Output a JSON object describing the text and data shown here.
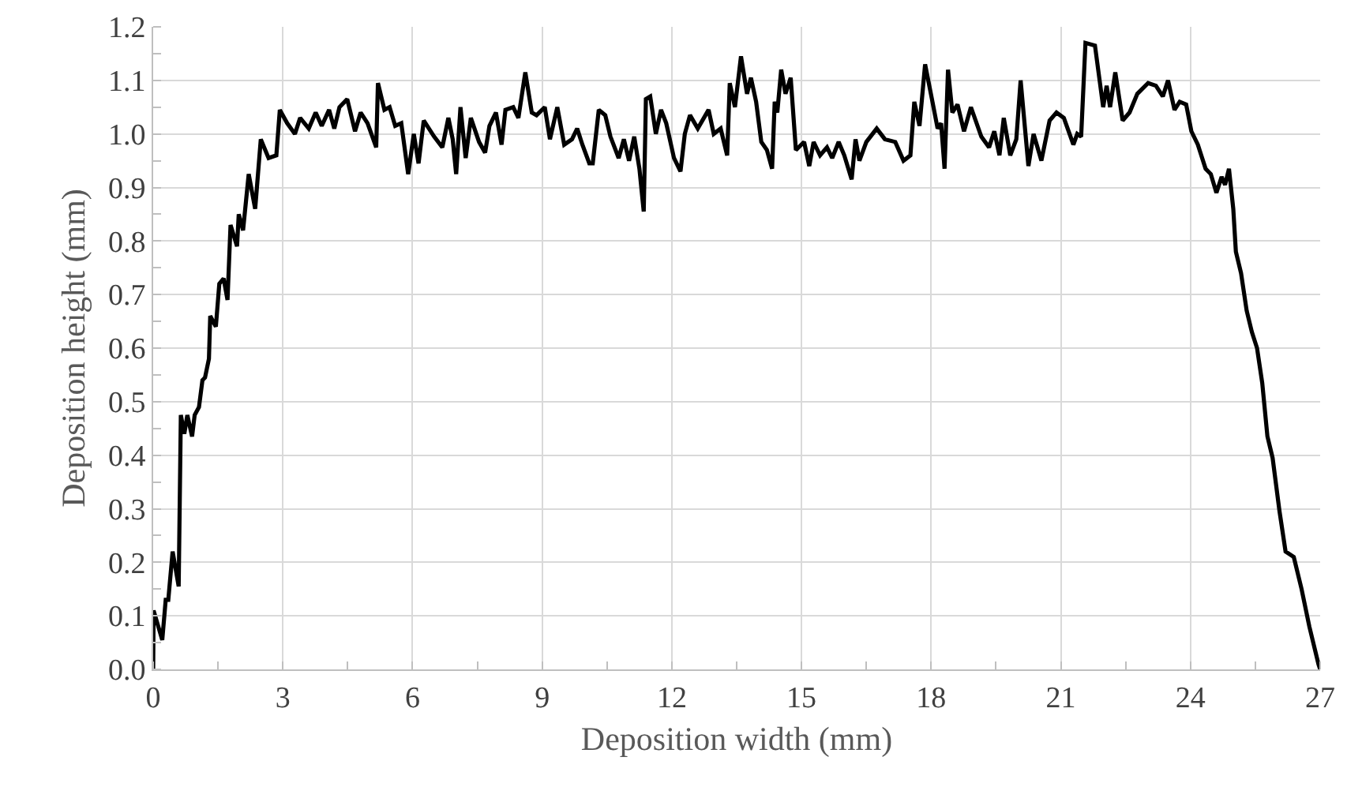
{
  "chart_data": {
    "type": "line",
    "xlabel": "Deposition width (mm)",
    "ylabel": "Deposition height (mm)",
    "x": [
      0,
      0.01,
      0.21,
      0.29,
      0.35,
      0.45,
      0.59,
      0.64,
      0.72,
      0.79,
      0.9,
      0.96,
      1.06,
      1.14,
      1.2,
      1.29,
      1.32,
      1.45,
      1.53,
      1.63,
      1.72,
      1.79,
      1.94,
      1.98,
      2.08,
      2.21,
      2.36,
      2.49,
      2.67,
      2.85,
      2.93,
      3.1,
      3.28,
      3.4,
      3.6,
      3.76,
      3.9,
      4.07,
      4.19,
      4.31,
      4.49,
      4.67,
      4.8,
      4.96,
      5.16,
      5.2,
      5.35,
      5.47,
      5.6,
      5.74,
      5.9,
      6.03,
      6.14,
      6.26,
      6.5,
      6.69,
      6.83,
      6.93,
      7.01,
      7.11,
      7.23,
      7.35,
      7.54,
      7.68,
      7.78,
      7.93,
      8.06,
      8.15,
      8.33,
      8.45,
      8.61,
      8.76,
      8.87,
      9.06,
      9.18,
      9.35,
      9.51,
      9.69,
      9.81,
      9.93,
      10.09,
      10.17,
      10.31,
      10.46,
      10.58,
      10.77,
      10.89,
      11.01,
      11.13,
      11.25,
      11.35,
      11.4,
      11.5,
      11.63,
      11.75,
      11.87,
      12.05,
      12.2,
      12.3,
      12.42,
      12.6,
      12.85,
      12.97,
      13.13,
      13.28,
      13.34,
      13.46,
      13.6,
      13.74,
      13.83,
      13.95,
      14.07,
      14.2,
      14.32,
      14.38,
      14.44,
      14.53,
      14.63,
      14.75,
      14.87,
      15.06,
      15.18,
      15.28,
      15.43,
      15.59,
      15.71,
      15.86,
      15.99,
      16.16,
      16.25,
      16.34,
      16.5,
      16.74,
      16.93,
      17.17,
      17.36,
      17.52,
      17.61,
      17.73,
      17.86,
      18.03,
      18.15,
      18.23,
      18.31,
      18.39,
      18.49,
      18.61,
      18.76,
      18.92,
      19.16,
      19.34,
      19.46,
      19.58,
      19.68,
      19.83,
      19.97,
      20.07,
      20.25,
      20.37,
      20.55,
      20.74,
      20.9,
      21.07,
      21.29,
      21.38,
      21.47,
      21.57,
      21.79,
      21.98,
      22.06,
      22.14,
      22.26,
      22.43,
      22.59,
      22.77,
      23.02,
      23.2,
      23.36,
      23.48,
      23.63,
      23.75,
      23.9,
      24.02,
      24.17,
      24.35,
      24.47,
      24.6,
      24.72,
      24.8,
      24.89,
      24.99,
      25.05,
      25.17,
      25.3,
      25.42,
      25.54,
      25.66,
      25.78,
      25.9,
      26.06,
      26.2,
      26.39,
      26.57,
      26.75,
      26.96,
      27
    ],
    "series": [
      {
        "color": "#000000",
        "values": [
          0,
          0.11,
          0.055,
          0.13,
          0.13,
          0.22,
          0.155,
          0.475,
          0.44,
          0.475,
          0.435,
          0.475,
          0.49,
          0.54,
          0.545,
          0.58,
          0.66,
          0.64,
          0.72,
          0.73,
          0.69,
          0.83,
          0.79,
          0.85,
          0.82,
          0.925,
          0.86,
          0.99,
          0.955,
          0.96,
          1.045,
          1.02,
          1.0,
          1.03,
          1.01,
          1.04,
          1.015,
          1.045,
          1.01,
          1.05,
          1.065,
          1.005,
          1.04,
          1.02,
          0.975,
          1.095,
          1.045,
          1.05,
          1.015,
          1.02,
          0.925,
          1.0,
          0.945,
          1.025,
          0.995,
          0.975,
          1.03,
          0.99,
          0.925,
          1.05,
          0.955,
          1.03,
          0.985,
          0.965,
          1.015,
          1.04,
          0.98,
          1.045,
          1.05,
          1.03,
          1.115,
          1.04,
          1.035,
          1.05,
          0.99,
          1.05,
          0.98,
          0.99,
          1.01,
          0.98,
          0.945,
          0.945,
          1.045,
          1.035,
          0.995,
          0.955,
          0.99,
          0.95,
          0.995,
          0.935,
          0.855,
          1.065,
          1.07,
          1.0,
          1.045,
          1.02,
          0.955,
          0.93,
          1.0,
          1.035,
          1.01,
          1.045,
          1.0,
          1.01,
          0.96,
          1.095,
          1.05,
          1.145,
          1.075,
          1.105,
          1.06,
          0.985,
          0.97,
          0.935,
          1.06,
          1.04,
          1.12,
          1.075,
          1.105,
          0.97,
          0.985,
          0.94,
          0.985,
          0.96,
          0.975,
          0.955,
          0.985,
          0.96,
          0.915,
          0.99,
          0.95,
          0.985,
          1.01,
          0.99,
          0.985,
          0.95,
          0.96,
          1.06,
          1.015,
          1.13,
          1.06,
          1.01,
          1.02,
          0.935,
          1.12,
          1.04,
          1.055,
          1.005,
          1.05,
          0.995,
          0.975,
          1.005,
          0.96,
          1.03,
          0.96,
          0.99,
          1.1,
          0.94,
          1.0,
          0.95,
          1.025,
          1.04,
          1.03,
          0.98,
          1.0,
          0.995,
          1.17,
          1.165,
          1.05,
          1.09,
          1.05,
          1.115,
          1.025,
          1.04,
          1.075,
          1.095,
          1.09,
          1.07,
          1.1,
          1.045,
          1.06,
          1.055,
          1.005,
          0.98,
          0.935,
          0.925,
          0.89,
          0.92,
          0.905,
          0.935,
          0.86,
          0.78,
          0.74,
          0.67,
          0.63,
          0.6,
          0.535,
          0.435,
          0.395,
          0.295,
          0.22,
          0.21,
          0.15,
          0.08,
          0.01,
          0
        ]
      }
    ],
    "xlim": [
      0,
      27
    ],
    "xticks": [
      0,
      3,
      6,
      9,
      12,
      15,
      18,
      21,
      24,
      27
    ],
    "ylim": [
      0,
      1.2
    ],
    "yticks": [
      {
        "value": 0,
        "label": "0.0"
      },
      {
        "value": 0.1,
        "label": "0.1"
      },
      {
        "value": 0.2,
        "label": "0.2"
      },
      {
        "value": 0.3,
        "label": "0.3"
      },
      {
        "value": 0.4,
        "label": "0.4"
      },
      {
        "value": 0.5,
        "label": "0.5"
      },
      {
        "value": 0.6,
        "label": "0.6"
      },
      {
        "value": 0.7,
        "label": "0.7"
      },
      {
        "value": 0.8,
        "label": "0.8"
      },
      {
        "value": 0.9,
        "label": "0.9"
      },
      {
        "value": 1,
        "label": "1.0"
      },
      {
        "value": 1.1,
        "label": "1.1"
      },
      {
        "value": 1.2,
        "label": "1.2"
      }
    ],
    "grid": true,
    "marker": "none",
    "line_style": "solid"
  }
}
